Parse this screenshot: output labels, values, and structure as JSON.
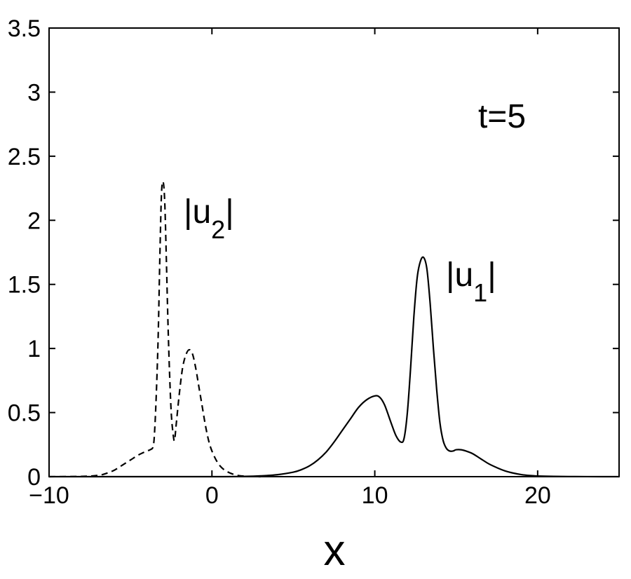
{
  "chart_data": {
    "type": "line",
    "title": "",
    "xlabel": "x",
    "ylabel": "",
    "xlim": [
      -10,
      25
    ],
    "ylim": [
      0,
      3.5
    ],
    "xticks": [
      -10,
      0,
      10,
      20
    ],
    "xtick_labels": [
      "−10",
      "0",
      "10",
      "20"
    ],
    "yticks": [
      0,
      0.5,
      1,
      1.5,
      2,
      2.5,
      3,
      3.5
    ],
    "ytick_labels": [
      "0",
      "0.5",
      "1",
      "1.5",
      "2",
      "2.5",
      "3",
      "3.5"
    ],
    "grid": false,
    "annotations": {
      "time": "t=5",
      "u1": {
        "pre": "|u",
        "sub": "1",
        "post": "|"
      },
      "u2": {
        "pre": "|u",
        "sub": "2",
        "post": "|"
      }
    },
    "series": [
      {
        "style": "dashed",
        "color": "#000000",
        "x": [
          -10,
          -8,
          -7,
          -6.5,
          -6,
          -5.5,
          -5,
          -4.5,
          -4,
          -3.8,
          -3.6,
          -3.5,
          -3.4,
          -3.3,
          -3.2,
          -3.1,
          -3.0,
          -2.9,
          -2.8,
          -2.7,
          -2.6,
          -2.5,
          -2.4,
          -2.3,
          -2.2,
          -2.0,
          -1.8,
          -1.6,
          -1.4,
          -1.2,
          -1.0,
          -0.8,
          -0.6,
          -0.4,
          -0.2,
          0,
          0.3,
          0.6,
          1.0,
          1.5,
          2.0,
          2.5,
          3.0
        ],
        "y": [
          0,
          0.002,
          0.01,
          0.025,
          0.05,
          0.09,
          0.13,
          0.17,
          0.2,
          0.21,
          0.24,
          0.4,
          0.7,
          1.1,
          1.7,
          2.2,
          2.3,
          2.15,
          1.7,
          1.2,
          0.8,
          0.5,
          0.35,
          0.28,
          0.4,
          0.65,
          0.85,
          0.95,
          0.99,
          0.96,
          0.85,
          0.7,
          0.55,
          0.4,
          0.28,
          0.2,
          0.12,
          0.07,
          0.035,
          0.012,
          0.004,
          0.001,
          0
        ]
      },
      {
        "style": "solid",
        "color": "#000000",
        "x": [
          -10,
          0,
          2,
          3,
          4,
          5,
          5.5,
          6,
          6.5,
          7,
          7.5,
          8,
          8.5,
          9,
          9.5,
          10,
          10.3,
          10.6,
          11.0,
          11.3,
          11.6,
          11.8,
          12.0,
          12.2,
          12.4,
          12.6,
          12.8,
          13.0,
          13.2,
          13.4,
          13.6,
          13.8,
          14.0,
          14.2,
          14.4,
          14.6,
          14.8,
          15.0,
          15.3,
          15.6,
          16.0,
          16.5,
          17.0,
          17.5,
          18.0,
          18.5,
          19.0,
          19.5,
          20.0,
          21.0,
          22.0,
          23.0,
          25.0
        ],
        "y": [
          0,
          0,
          0.002,
          0.006,
          0.015,
          0.035,
          0.055,
          0.085,
          0.13,
          0.19,
          0.27,
          0.36,
          0.45,
          0.54,
          0.6,
          0.63,
          0.62,
          0.56,
          0.42,
          0.32,
          0.27,
          0.3,
          0.5,
          0.85,
          1.25,
          1.55,
          1.68,
          1.71,
          1.62,
          1.35,
          1.0,
          0.68,
          0.42,
          0.28,
          0.22,
          0.2,
          0.2,
          0.21,
          0.21,
          0.2,
          0.18,
          0.14,
          0.1,
          0.07,
          0.045,
          0.028,
          0.016,
          0.009,
          0.005,
          0.002,
          0.0008,
          0.0002,
          0
        ]
      }
    ]
  }
}
